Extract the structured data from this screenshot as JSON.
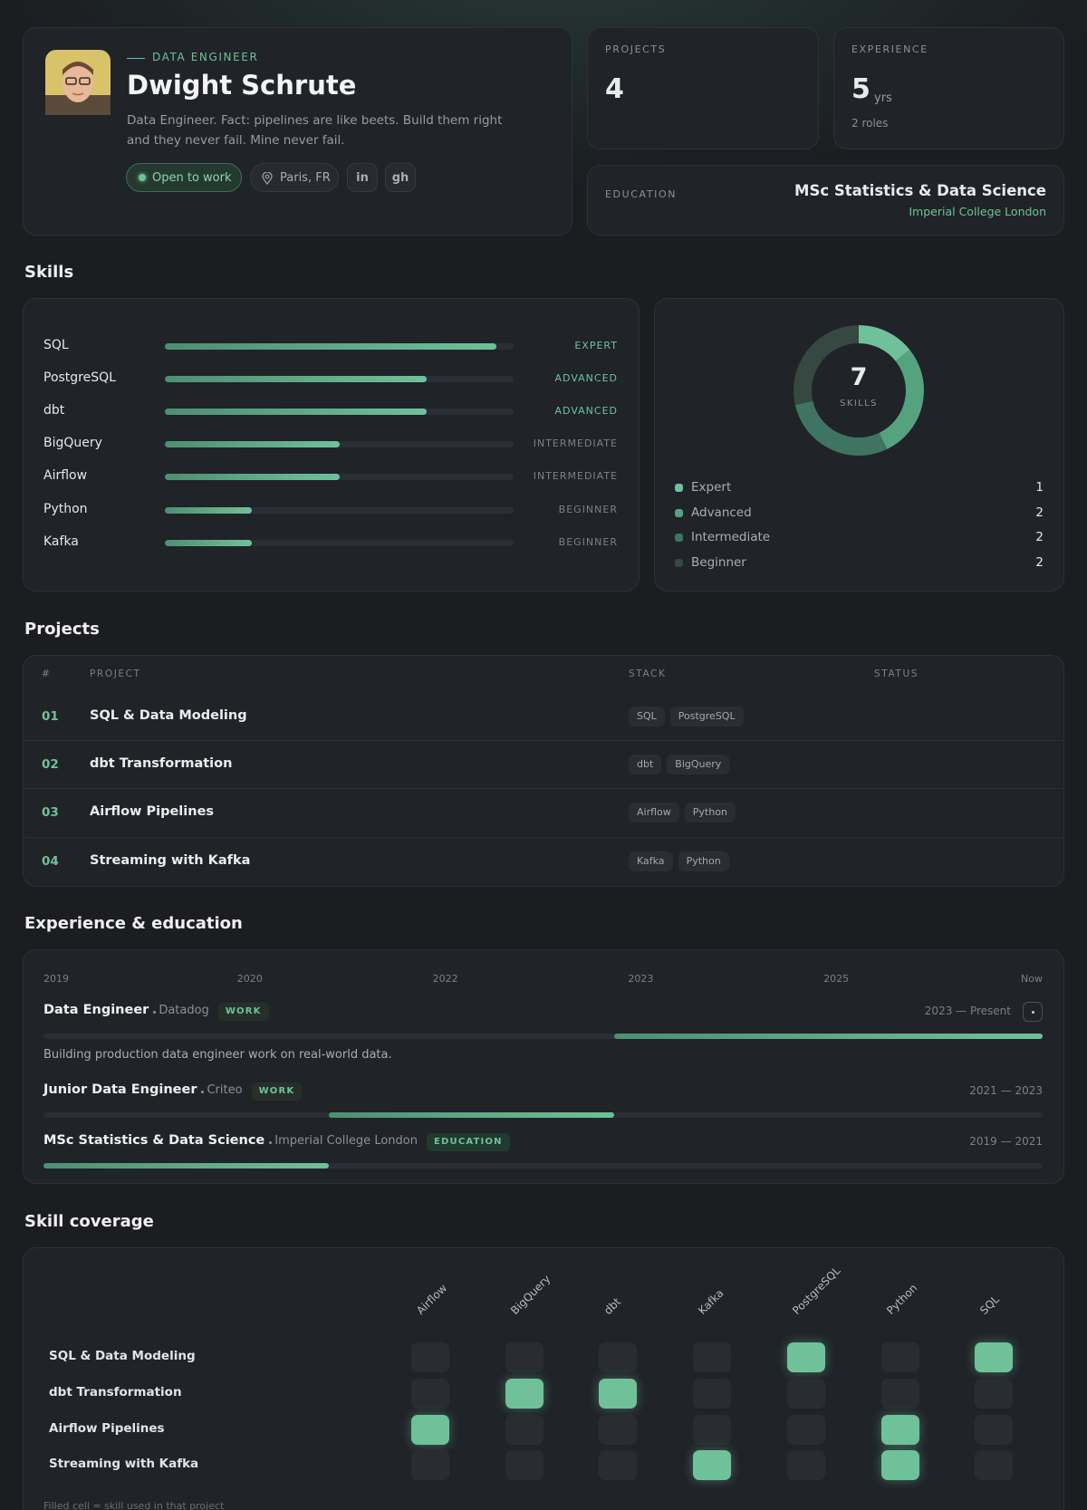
{
  "profile": {
    "role": "DATA ENGINEER",
    "name": "Dwight Schrute",
    "bio": "Data Engineer. Fact: pipelines are like beets. Build them right and they never fail. Mine never fail.",
    "status": "Open to work",
    "location": "Paris, FR",
    "links": [
      "in",
      "gh"
    ]
  },
  "stats": {
    "projects": {
      "label": "PROJECTS",
      "value": 4
    },
    "experience": {
      "label": "EXPERIENCE",
      "value": 5,
      "unit": "yrs",
      "sub": "2 roles"
    },
    "education": {
      "label": "EDUCATION",
      "degree": "MSc Statistics & Data Science",
      "school": "Imperial College London"
    }
  },
  "skills": {
    "title": "Skills",
    "items": [
      {
        "name": "SQL",
        "level": "EXPERT",
        "value": 95
      },
      {
        "name": "PostgreSQL",
        "level": "ADVANCED",
        "value": 75
      },
      {
        "name": "dbt",
        "level": "ADVANCED",
        "value": 75
      },
      {
        "name": "BigQuery",
        "level": "INTERMEDIATE",
        "value": 50
      },
      {
        "name": "Airflow",
        "level": "INTERMEDIATE",
        "value": 50
      },
      {
        "name": "Python",
        "level": "BEGINNER",
        "value": 25
      },
      {
        "name": "Kafka",
        "level": "BEGINNER",
        "value": 25
      }
    ],
    "xlim": [
      0,
      100
    ]
  },
  "donut": {
    "total": 7,
    "label": "SKILLS",
    "legend": [
      {
        "name": "Expert",
        "count": 1,
        "color": "#6fc19a"
      },
      {
        "name": "Advanced",
        "count": 2,
        "color": "#55a27f"
      },
      {
        "name": "Intermediate",
        "count": 2,
        "color": "#3f7462"
      },
      {
        "name": "Beginner",
        "count": 2,
        "color": "#354841"
      }
    ]
  },
  "projects": {
    "title": "Projects",
    "columns": [
      "#",
      "PROJECT",
      "STACK",
      "STATUS"
    ],
    "rows": [
      {
        "num": "01",
        "name": "SQL & Data Modeling",
        "stack": [
          "SQL",
          "PostgreSQL"
        ]
      },
      {
        "num": "02",
        "name": "dbt Transformation",
        "stack": [
          "dbt",
          "BigQuery"
        ]
      },
      {
        "num": "03",
        "name": "Airflow Pipelines",
        "stack": [
          "Airflow",
          "Python"
        ]
      },
      {
        "num": "04",
        "name": "Streaming with Kafka",
        "stack": [
          "Kafka",
          "Python"
        ]
      }
    ]
  },
  "experience": {
    "title": "Experience & education",
    "axis_labels": [
      "2019",
      "2020",
      "2022",
      "2023",
      "2025",
      "Now"
    ],
    "xlim": [
      2019,
      2026
    ],
    "entries": [
      {
        "title": "Data Engineer",
        "org": "Datadog",
        "tag": "WORK",
        "period": "2023 — Present",
        "start": 2023,
        "end": 2026,
        "description": "Building production data engineer work on real-world data."
      },
      {
        "title": "Junior Data Engineer",
        "org": "Criteo",
        "tag": "WORK",
        "period": "2021 — 2023",
        "start": 2021,
        "end": 2023
      },
      {
        "title": "MSc Statistics & Data Science",
        "org": "Imperial College London",
        "tag": "EDUCATION",
        "period": "2019 — 2021",
        "start": 2019,
        "end": 2021
      }
    ]
  },
  "coverage": {
    "title": "Skill coverage",
    "skills": [
      "Airflow",
      "BigQuery",
      "dbt",
      "Kafka",
      "PostgreSQL",
      "Python",
      "SQL"
    ],
    "projects": [
      "SQL & Data Modeling",
      "dbt Transformation",
      "Airflow Pipelines",
      "Streaming with Kafka"
    ],
    "matrix": [
      [
        0,
        0,
        0,
        0,
        1,
        0,
        1
      ],
      [
        0,
        1,
        1,
        0,
        0,
        0,
        0
      ],
      [
        1,
        0,
        0,
        0,
        0,
        1,
        0
      ],
      [
        0,
        0,
        0,
        1,
        0,
        1,
        0
      ]
    ],
    "note": "Filled cell = skill used in that project"
  }
}
